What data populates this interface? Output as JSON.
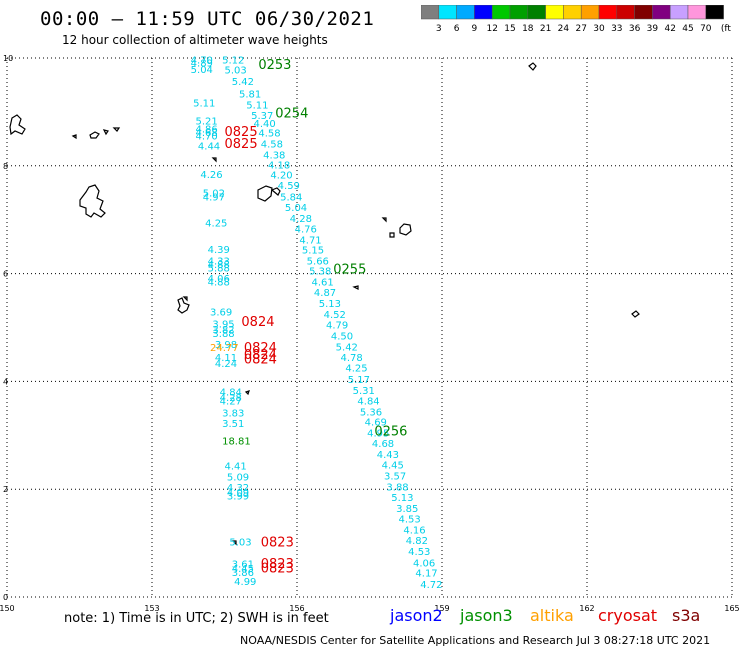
{
  "header": {
    "title": "00:00 – 11:59 UTC 06/30/2021",
    "subtitle": "12 hour collection of altimeter wave heights"
  },
  "scale": {
    "labels": [
      "3",
      "6",
      "9",
      "12",
      "15",
      "18",
      "21",
      "24",
      "27",
      "30",
      "33",
      "36",
      "39",
      "42",
      "45",
      "70"
    ],
    "unit": "(ft)",
    "colors": [
      "#7f7f7f",
      "#00e5ff",
      "#00aaff",
      "#0000ff",
      "#00c800",
      "#00a000",
      "#008000",
      "#ffff00",
      "#ffd000",
      "#ffa000",
      "#ff0000",
      "#cc0000",
      "#800000",
      "#800080",
      "#c8a0ff",
      "#ff96dc",
      "#000000"
    ]
  },
  "axes": {
    "x_ticks": [
      "150",
      "153",
      "156",
      "159",
      "162",
      "165"
    ],
    "y_ticks": [
      "0",
      "2",
      "4",
      "6",
      "8",
      "10"
    ],
    "lon_range": [
      150,
      165
    ],
    "lat_range": [
      0,
      10
    ],
    "grid": true
  },
  "tracks": {
    "jason3_times": [
      {
        "text": "0253",
        "lon": 155.2,
        "lat": 9.8
      },
      {
        "text": "0254",
        "lon": 155.55,
        "lat": 8.9
      },
      {
        "text": "0255",
        "lon": 156.75,
        "lat": 6.0
      },
      {
        "text": "0256",
        "lon": 157.6,
        "lat": 3.0
      }
    ],
    "cryosat_times": [
      {
        "text": "0825",
        "lon": 154.5,
        "lat": 8.55
      },
      {
        "text": "0825",
        "lon": 154.5,
        "lat": 8.33
      },
      {
        "text": "0824",
        "lon": 154.85,
        "lat": 5.03
      },
      {
        "text": "0824",
        "lon": 154.9,
        "lat": 4.55
      },
      {
        "text": "0824",
        "lon": 154.9,
        "lat": 4.42
      },
      {
        "text": "0824",
        "lon": 154.9,
        "lat": 4.33
      },
      {
        "text": "0823",
        "lon": 155.25,
        "lat": 0.94
      },
      {
        "text": "0823",
        "lon": 155.25,
        "lat": 0.54
      },
      {
        "text": "0823",
        "lon": 155.25,
        "lat": 0.45
      }
    ],
    "values": [
      {
        "v": "4.70",
        "lon": 153.8,
        "lat": 9.9
      },
      {
        "v": "5.12",
        "lon": 154.45,
        "lat": 9.9
      },
      {
        "v": "4.89",
        "lon": 153.8,
        "lat": 9.84
      },
      {
        "v": "5.04",
        "lon": 153.8,
        "lat": 9.72
      },
      {
        "v": "5.03",
        "lon": 154.5,
        "lat": 9.71
      },
      {
        "v": "5.42",
        "lon": 154.65,
        "lat": 9.5
      },
      {
        "v": "5.81",
        "lon": 154.8,
        "lat": 9.27
      },
      {
        "v": "5.11",
        "lon": 153.85,
        "lat": 9.1
      },
      {
        "v": "5.11",
        "lon": 154.95,
        "lat": 9.06
      },
      {
        "v": "5.37",
        "lon": 155.05,
        "lat": 8.87
      },
      {
        "v": "5.21",
        "lon": 153.9,
        "lat": 8.77
      },
      {
        "v": "4.40",
        "lon": 155.1,
        "lat": 8.72
      },
      {
        "v": "4.86",
        "lon": 153.9,
        "lat": 8.62
      },
      {
        "v": "4.68",
        "lon": 153.9,
        "lat": 8.55
      },
      {
        "v": "4.70",
        "lon": 153.9,
        "lat": 8.49
      },
      {
        "v": "4.58",
        "lon": 155.2,
        "lat": 8.54
      },
      {
        "v": "4.44",
        "lon": 153.95,
        "lat": 8.3
      },
      {
        "v": "4.58",
        "lon": 155.25,
        "lat": 8.34
      },
      {
        "v": "4.38",
        "lon": 155.3,
        "lat": 8.14
      },
      {
        "v": "4.18",
        "lon": 155.4,
        "lat": 7.95
      },
      {
        "v": "4.26",
        "lon": 154.0,
        "lat": 7.77
      },
      {
        "v": "4.20",
        "lon": 155.45,
        "lat": 7.76
      },
      {
        "v": "4.59",
        "lon": 155.6,
        "lat": 7.57
      },
      {
        "v": "5.02",
        "lon": 154.05,
        "lat": 7.43
      },
      {
        "v": "4.97",
        "lon": 154.05,
        "lat": 7.36
      },
      {
        "v": "5.84",
        "lon": 155.65,
        "lat": 7.36
      },
      {
        "v": "5.04",
        "lon": 155.75,
        "lat": 7.16
      },
      {
        "v": "4.28",
        "lon": 155.85,
        "lat": 6.96
      },
      {
        "v": "4.25",
        "lon": 154.1,
        "lat": 6.87
      },
      {
        "v": "4.76",
        "lon": 155.95,
        "lat": 6.76
      },
      {
        "v": "4.71",
        "lon": 156.05,
        "lat": 6.56
      },
      {
        "v": "4.39",
        "lon": 154.15,
        "lat": 6.38
      },
      {
        "v": "5.15",
        "lon": 156.1,
        "lat": 6.37
      },
      {
        "v": "4.33",
        "lon": 154.15,
        "lat": 6.17
      },
      {
        "v": "4.88",
        "lon": 154.15,
        "lat": 6.1
      },
      {
        "v": "5.88",
        "lon": 154.15,
        "lat": 6.04
      },
      {
        "v": "5.66",
        "lon": 156.2,
        "lat": 6.17
      },
      {
        "v": "5.38",
        "lon": 156.25,
        "lat": 5.98
      },
      {
        "v": "4.06",
        "lon": 154.15,
        "lat": 5.84
      },
      {
        "v": "4.88",
        "lon": 154.15,
        "lat": 5.78
      },
      {
        "v": "4.61",
        "lon": 156.3,
        "lat": 5.78
      },
      {
        "v": "4.87",
        "lon": 156.35,
        "lat": 5.58
      },
      {
        "v": "5.13",
        "lon": 156.45,
        "lat": 5.38
      },
      {
        "v": "3.69",
        "lon": 154.2,
        "lat": 5.22
      },
      {
        "v": "4.52",
        "lon": 156.55,
        "lat": 5.18
      },
      {
        "v": "3.95",
        "lon": 154.25,
        "lat": 5.0
      },
      {
        "v": "4.79",
        "lon": 156.6,
        "lat": 4.98
      },
      {
        "v": "3.82",
        "lon": 154.25,
        "lat": 4.9
      },
      {
        "v": "3.88",
        "lon": 154.25,
        "lat": 4.82
      },
      {
        "v": "4.50",
        "lon": 156.7,
        "lat": 4.78
      },
      {
        "v": "3.98",
        "lon": 154.3,
        "lat": 4.62
      },
      {
        "v": "24.77",
        "lon": 154.2,
        "lat": 4.56,
        "c": "orange"
      },
      {
        "v": "5.42",
        "lon": 156.8,
        "lat": 4.57
      },
      {
        "v": "4.11",
        "lon": 154.3,
        "lat": 4.38
      },
      {
        "v": "4.78",
        "lon": 156.9,
        "lat": 4.38
      },
      {
        "v": "4.24",
        "lon": 154.3,
        "lat": 4.27
      },
      {
        "v": "4.25",
        "lon": 157.0,
        "lat": 4.18
      },
      {
        "v": "5.17",
        "lon": 157.05,
        "lat": 3.97
      },
      {
        "v": "5.31",
        "lon": 157.15,
        "lat": 3.77
      },
      {
        "v": "4.84",
        "lon": 154.4,
        "lat": 3.74
      },
      {
        "v": "4.28",
        "lon": 154.4,
        "lat": 3.64
      },
      {
        "v": "4.27",
        "lon": 154.4,
        "lat": 3.57
      },
      {
        "v": "4.84",
        "lon": 157.25,
        "lat": 3.57
      },
      {
        "v": "5.36",
        "lon": 157.3,
        "lat": 3.37
      },
      {
        "v": "3.83",
        "lon": 154.45,
        "lat": 3.35
      },
      {
        "v": "4.69",
        "lon": 157.4,
        "lat": 3.18
      },
      {
        "v": "3.51",
        "lon": 154.45,
        "lat": 3.15
      },
      {
        "v": "4.95",
        "lon": 157.45,
        "lat": 2.98
      },
      {
        "v": "18.81",
        "lon": 154.45,
        "lat": 2.83,
        "c": "green"
      },
      {
        "v": "4.68",
        "lon": 157.55,
        "lat": 2.78
      },
      {
        "v": "4.43",
        "lon": 157.65,
        "lat": 2.58
      },
      {
        "v": "4.41",
        "lon": 154.5,
        "lat": 2.37
      },
      {
        "v": "4.45",
        "lon": 157.75,
        "lat": 2.38
      },
      {
        "v": "5.09",
        "lon": 154.55,
        "lat": 2.16
      },
      {
        "v": "3.57",
        "lon": 157.8,
        "lat": 2.18
      },
      {
        "v": "4.32",
        "lon": 154.55,
        "lat": 1.97
      },
      {
        "v": "3.88",
        "lon": 157.85,
        "lat": 1.98
      },
      {
        "v": "4.09",
        "lon": 154.55,
        "lat": 1.87
      },
      {
        "v": "3.99",
        "lon": 154.55,
        "lat": 1.81
      },
      {
        "v": "5.13",
        "lon": 157.95,
        "lat": 1.78
      },
      {
        "v": "3.85",
        "lon": 158.05,
        "lat": 1.58
      },
      {
        "v": "4.53",
        "lon": 158.1,
        "lat": 1.38
      },
      {
        "v": "4.16",
        "lon": 158.2,
        "lat": 1.18
      },
      {
        "v": "5.03",
        "lon": 154.6,
        "lat": 0.96
      },
      {
        "v": "4.82",
        "lon": 158.25,
        "lat": 0.98
      },
      {
        "v": "4.53",
        "lon": 158.3,
        "lat": 0.78
      },
      {
        "v": "3.61",
        "lon": 154.65,
        "lat": 0.55
      },
      {
        "v": "4.06",
        "lon": 158.4,
        "lat": 0.57
      },
      {
        "v": "4.45",
        "lon": 154.65,
        "lat": 0.46
      },
      {
        "v": "3.86",
        "lon": 154.65,
        "lat": 0.39
      },
      {
        "v": "4.17",
        "lon": 158.45,
        "lat": 0.38
      },
      {
        "v": "4.99",
        "lon": 154.7,
        "lat": 0.22
      },
      {
        "v": "4.72",
        "lon": 158.55,
        "lat": 0.17
      }
    ]
  },
  "footer": {
    "note": "note: 1) Time is in UTC; 2) SWH is in feet",
    "satellites": [
      {
        "name": "jason2",
        "color": "#0000ff"
      },
      {
        "name": "jason3",
        "color": "#009000"
      },
      {
        "name": "altika",
        "color": "#ffa000"
      },
      {
        "name": "cryosat",
        "color": "#e00000"
      },
      {
        "name": "s3a",
        "color": "#800000"
      }
    ],
    "credit": "NOAA/NESDIS Center for Satellite Applications and Research   Jul  3 08:27:18 UTC 2021"
  }
}
